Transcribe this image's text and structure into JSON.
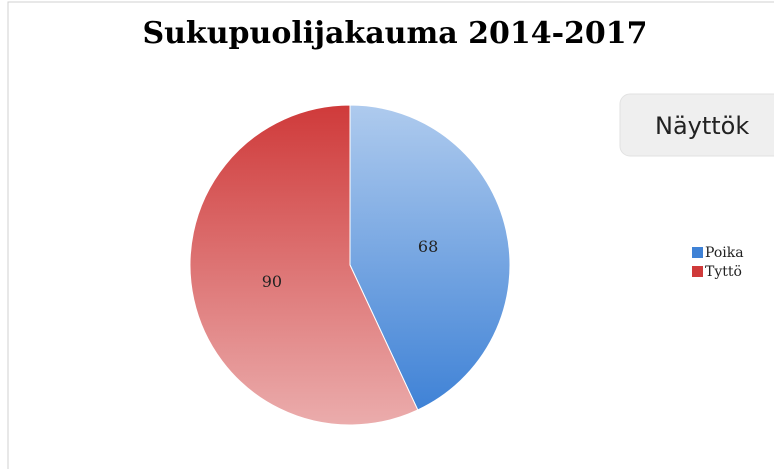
{
  "chart_data": {
    "type": "pie",
    "title": "Sukupuolijakauma 2014-2017",
    "categories": [
      "Poika",
      "Tyttö"
    ],
    "values": [
      68,
      90
    ],
    "colors": [
      "#3f82d6",
      "#cf3a3a"
    ],
    "legend": "right"
  },
  "overlay": {
    "label": "Näyttök"
  }
}
